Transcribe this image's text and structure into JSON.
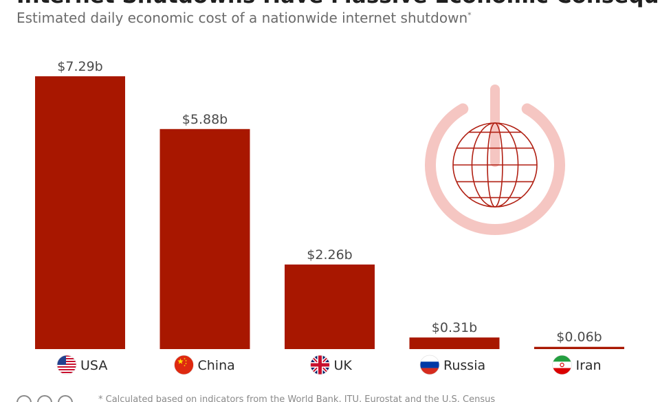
{
  "header": {
    "title": "Internet Shutdowns Have Massive Economic Consequences",
    "subtitle": "Estimated daily economic cost of a nationwide internet shutdown",
    "subtitle_marker": "*"
  },
  "footer": {
    "note": "* Calculated based on indicators from the World Bank, ITU, Eurostat and the U.S. Census",
    "icons": [
      "cc-icon",
      "by-icon",
      "equal-icon"
    ]
  },
  "decoration": {
    "icon": "power-globe-icon",
    "icon_color": "#f5c6c2",
    "globe_color": "#b01f12"
  },
  "chart_data": {
    "type": "bar",
    "categories": [
      "USA",
      "China",
      "UK",
      "Russia",
      "Iran"
    ],
    "values": [
      7.29,
      5.88,
      2.26,
      0.31,
      0.06
    ],
    "value_labels": [
      "$7.29b",
      "$5.88b",
      "$2.26b",
      "$0.31b",
      "$0.06b"
    ],
    "flags": [
      "us-flag-icon",
      "china-flag-icon",
      "uk-flag-icon",
      "russia-flag-icon",
      "iran-flag-icon"
    ],
    "title": "Internet Shutdowns Have Massive Economic Consequences",
    "subtitle": "Estimated daily economic cost of a nationwide internet shutdown",
    "xlabel": "",
    "ylabel": "",
    "ylim": [
      0,
      7.29
    ],
    "grid": false,
    "bar_color": "#a81700"
  }
}
